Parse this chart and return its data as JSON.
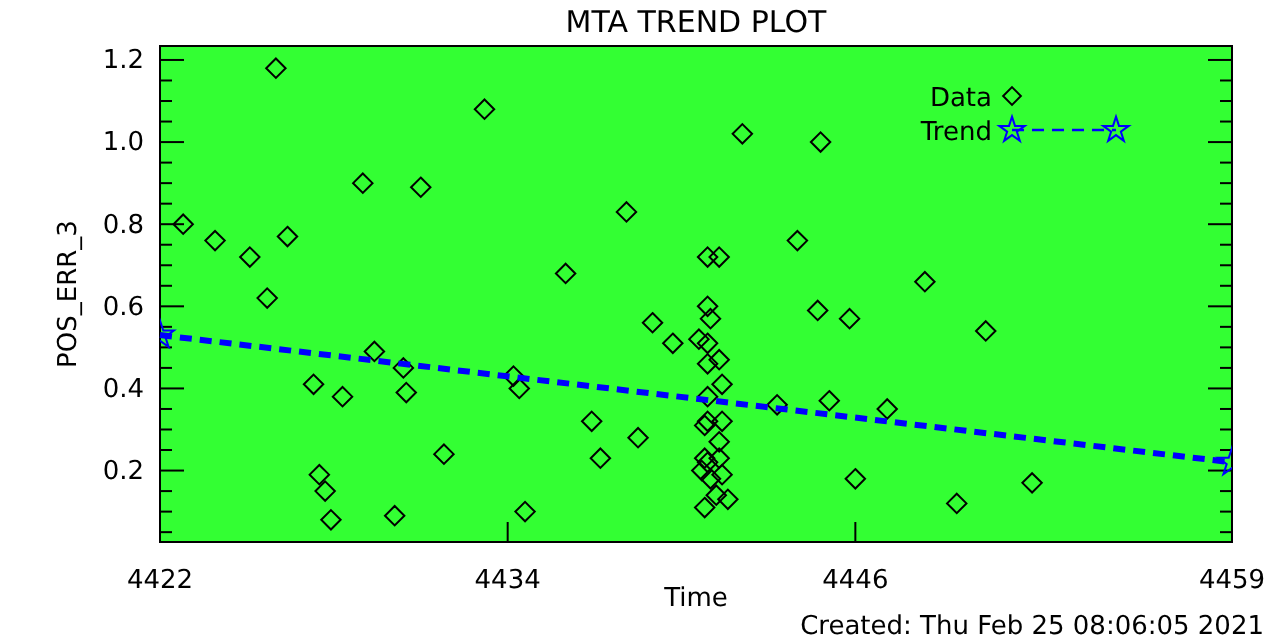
{
  "chart_data": {
    "type": "scatter",
    "title": "MTA TREND PLOT",
    "xlabel": "Time",
    "ylabel": "POS_ERR_3",
    "annotations": [
      "Created: Thu Feb 25 08:06:05 2021"
    ],
    "xlim": [
      4422,
      4459
    ],
    "xticks": [
      4422,
      4434,
      4446,
      4459
    ],
    "ylim": [
      0.026,
      1.234
    ],
    "yticks": [
      {
        "value": 0.05,
        "label": null
      },
      {
        "value": 0.1,
        "label": null
      },
      {
        "value": 0.15,
        "label": null
      },
      {
        "value": 0.2,
        "label": "0.2"
      },
      {
        "value": 0.25,
        "label": null
      },
      {
        "value": 0.3,
        "label": null
      },
      {
        "value": 0.35,
        "label": null
      },
      {
        "value": 0.4,
        "label": "0.4"
      },
      {
        "value": 0.45,
        "label": null
      },
      {
        "value": 0.5,
        "label": null
      },
      {
        "value": 0.55,
        "label": null
      },
      {
        "value": 0.6,
        "label": "0.6"
      },
      {
        "value": 0.65,
        "label": null
      },
      {
        "value": 0.7,
        "label": null
      },
      {
        "value": 0.75,
        "label": null
      },
      {
        "value": 0.8,
        "label": "0.8"
      },
      {
        "value": 0.85,
        "label": null
      },
      {
        "value": 0.9,
        "label": null
      },
      {
        "value": 0.95,
        "label": null
      },
      {
        "value": 1.0,
        "label": "1.0"
      },
      {
        "value": 1.05,
        "label": null
      },
      {
        "value": 1.1,
        "label": null
      },
      {
        "value": 1.15,
        "label": null
      },
      {
        "value": 1.2,
        "label": "1.2"
      }
    ],
    "grid": false,
    "legend": "top right",
    "series": [
      {
        "name": "Data",
        "type": "scatter",
        "marker": "diamond",
        "color": "#000000",
        "x": [
          4422.8,
          4423.9,
          4425.1,
          4425.7,
          4426.0,
          4426.4,
          4427.3,
          4427.5,
          4427.7,
          4427.9,
          4428.3,
          4429.0,
          4429.4,
          4430.1,
          4430.4,
          4430.5,
          4431.0,
          4431.8,
          4433.2,
          4434.2,
          4434.4,
          4434.6,
          4436.0,
          4436.9,
          4437.2,
          4438.1,
          4438.5,
          4439.0,
          4439.7,
          4442.1,
          4444.8,
          4444.0,
          4448.4,
          4444.7,
          4445.8,
          4450.5,
          4443.3,
          4445.1,
          4447.1,
          4446.0,
          4452.1,
          4449.5,
          4440.9,
          4441.3,
          4440.9,
          4441.0,
          4440.6,
          4440.9,
          4441.3,
          4440.9,
          4441.4,
          4440.9,
          4440.9,
          4441.4,
          4440.8,
          4441.3,
          4440.8,
          4440.9,
          4441.3,
          4441.0,
          4441.4,
          4440.7,
          4441.2,
          4441.6,
          4440.8
        ],
        "values": [
          0.8,
          0.76,
          0.72,
          0.62,
          1.18,
          0.77,
          0.41,
          0.19,
          0.15,
          0.08,
          0.38,
          0.9,
          0.49,
          0.09,
          0.45,
          0.39,
          0.89,
          0.24,
          1.08,
          0.43,
          0.4,
          0.1,
          0.68,
          0.32,
          0.23,
          0.83,
          0.28,
          0.56,
          0.51,
          1.02,
          1.0,
          0.76,
          0.66,
          0.59,
          0.57,
          0.54,
          0.36,
          0.37,
          0.35,
          0.18,
          0.17,
          0.12,
          0.72,
          0.72,
          0.6,
          0.57,
          0.52,
          0.51,
          0.47,
          0.46,
          0.41,
          0.38,
          0.32,
          0.32,
          0.31,
          0.27,
          0.23,
          0.22,
          0.23,
          0.18,
          0.19,
          0.2,
          0.14,
          0.13,
          0.11
        ]
      },
      {
        "name": "Trend",
        "type": "line",
        "marker": "star",
        "line_style": "dashed",
        "color": "#0000ff",
        "x": [
          4422,
          4459
        ],
        "values": [
          0.53,
          0.22
        ]
      }
    ]
  }
}
